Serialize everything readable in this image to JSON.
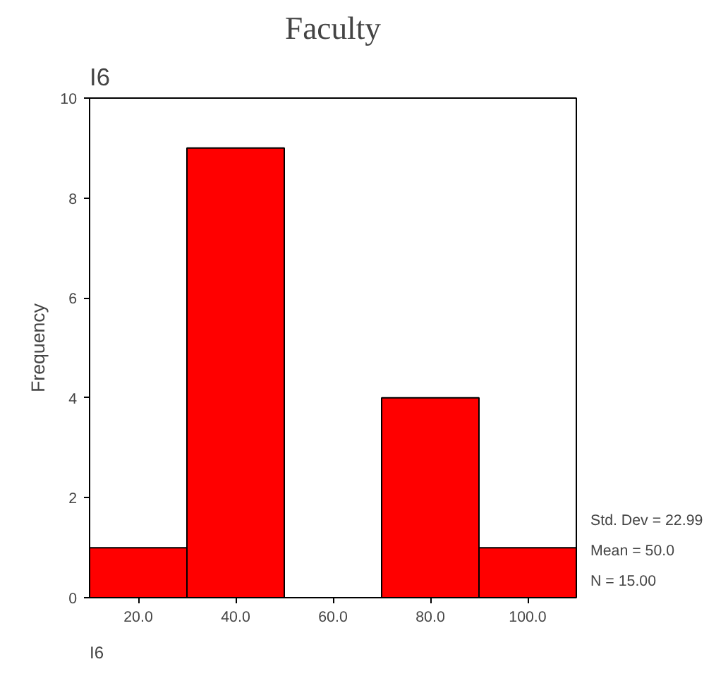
{
  "chart_data": {
    "type": "histogram",
    "title": "Faculty",
    "subtitle": "I6",
    "xlabel": "I6",
    "ylabel": "Frequency",
    "bins": [
      10,
      30,
      50,
      70,
      90,
      110
    ],
    "values": [
      1,
      9,
      0,
      4,
      1
    ],
    "color": "#ff0000",
    "xlim": [
      10,
      110
    ],
    "xticks": [
      {
        "value": 20,
        "label": "20.0"
      },
      {
        "value": 40,
        "label": "40.0"
      },
      {
        "value": 60,
        "label": "60.0"
      },
      {
        "value": 80,
        "label": "80.0"
      },
      {
        "value": 100,
        "label": "100.0"
      }
    ],
    "ylim": [
      0,
      10
    ],
    "yticks": [
      0,
      2,
      4,
      6,
      8,
      10
    ],
    "grid": false,
    "annotations": [
      "Std. Dev = 22.99",
      "Mean = 50.0",
      "N = 15.00"
    ]
  }
}
